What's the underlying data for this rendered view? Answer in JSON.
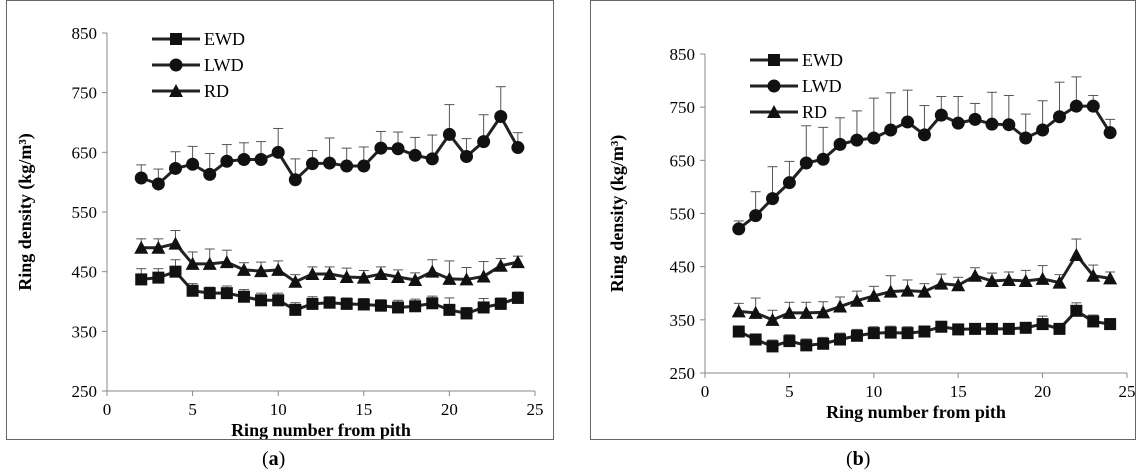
{
  "chart_data": [
    {
      "id": "a",
      "type": "line",
      "caption_letter": "a",
      "xlabel": "Ring number from pith",
      "ylabel": "Ring density (kg/m³)",
      "xlim": [
        0,
        25
      ],
      "ylim": [
        250,
        850
      ],
      "xticks": [
        0,
        5,
        10,
        15,
        20,
        25
      ],
      "yticks": [
        250,
        350,
        450,
        550,
        650,
        750,
        850
      ],
      "grid": false,
      "legend_position": "top-left",
      "x": [
        2,
        3,
        4,
        5,
        6,
        7,
        8,
        9,
        10,
        11,
        12,
        13,
        14,
        15,
        16,
        17,
        18,
        19,
        20,
        21,
        22,
        23,
        24
      ],
      "series": [
        {
          "name": "EWD",
          "marker": "square",
          "values": [
            437,
            440,
            450,
            418,
            414,
            414,
            408,
            402,
            402,
            386,
            396,
            398,
            396,
            395,
            393,
            390,
            392,
            397,
            386,
            380,
            390,
            396,
            406
          ],
          "errors": [
            18,
            15,
            20,
            12,
            10,
            12,
            12,
            12,
            12,
            12,
            12,
            10,
            10,
            10,
            10,
            12,
            12,
            12,
            20,
            10,
            15,
            10,
            10
          ]
        },
        {
          "name": "LWD",
          "marker": "circle",
          "values": [
            607,
            597,
            623,
            630,
            613,
            635,
            638,
            638,
            650,
            604,
            631,
            632,
            627,
            627,
            657,
            656,
            645,
            639,
            680,
            643,
            668,
            710,
            658
          ],
          "errors": [
            22,
            25,
            28,
            30,
            35,
            28,
            28,
            30,
            40,
            35,
            22,
            42,
            30,
            32,
            28,
            28,
            30,
            40,
            50,
            30,
            45,
            50,
            25
          ]
        },
        {
          "name": "RD",
          "marker": "triangle",
          "values": [
            490,
            490,
            497,
            463,
            463,
            466,
            453,
            451,
            453,
            433,
            446,
            446,
            441,
            440,
            446,
            441,
            436,
            450,
            438,
            437,
            442,
            460,
            466
          ],
          "errors": [
            15,
            15,
            22,
            20,
            25,
            20,
            12,
            15,
            15,
            12,
            12,
            12,
            15,
            12,
            12,
            12,
            12,
            20,
            30,
            20,
            25,
            12,
            10
          ]
        }
      ]
    },
    {
      "id": "b",
      "type": "line",
      "caption_letter": "b",
      "xlabel": "Ring number from pith",
      "ylabel": "Ring density (kg/m³)",
      "xlim": [
        0,
        25
      ],
      "ylim": [
        250,
        850
      ],
      "xticks": [
        0,
        5,
        10,
        15,
        20,
        25
      ],
      "yticks": [
        250,
        350,
        450,
        550,
        650,
        750,
        850
      ],
      "grid": false,
      "legend_position": "top-left",
      "x": [
        2,
        3,
        4,
        5,
        6,
        7,
        8,
        9,
        10,
        11,
        12,
        13,
        14,
        15,
        16,
        17,
        18,
        19,
        20,
        21,
        22,
        23,
        24
      ],
      "series": [
        {
          "name": "EWD",
          "marker": "square",
          "values": [
            328,
            313,
            300,
            310,
            302,
            305,
            313,
            320,
            325,
            326,
            325,
            328,
            337,
            332,
            333,
            333,
            333,
            335,
            342,
            333,
            367,
            347,
            342
          ],
          "errors": [
            10,
            10,
            12,
            12,
            12,
            12,
            12,
            12,
            12,
            12,
            12,
            10,
            10,
            10,
            10,
            10,
            10,
            10,
            15,
            10,
            15,
            12,
            10
          ]
        },
        {
          "name": "LWD",
          "marker": "circle",
          "values": [
            521,
            546,
            578,
            608,
            645,
            652,
            680,
            688,
            692,
            707,
            722,
            698,
            735,
            720,
            727,
            718,
            717,
            692,
            707,
            732,
            752,
            752,
            702
          ],
          "errors": [
            15,
            45,
            60,
            40,
            70,
            60,
            50,
            55,
            75,
            70,
            60,
            55,
            35,
            50,
            30,
            60,
            55,
            45,
            55,
            65,
            55,
            20,
            25
          ]
        },
        {
          "name": "RD",
          "marker": "triangle",
          "values": [
            366,
            363,
            350,
            363,
            363,
            364,
            375,
            386,
            395,
            403,
            405,
            403,
            418,
            415,
            433,
            423,
            425,
            423,
            427,
            420,
            472,
            433,
            428
          ],
          "errors": [
            15,
            28,
            18,
            20,
            20,
            20,
            18,
            18,
            18,
            30,
            20,
            15,
            18,
            15,
            15,
            15,
            15,
            20,
            25,
            15,
            30,
            20,
            12
          ]
        }
      ]
    }
  ]
}
